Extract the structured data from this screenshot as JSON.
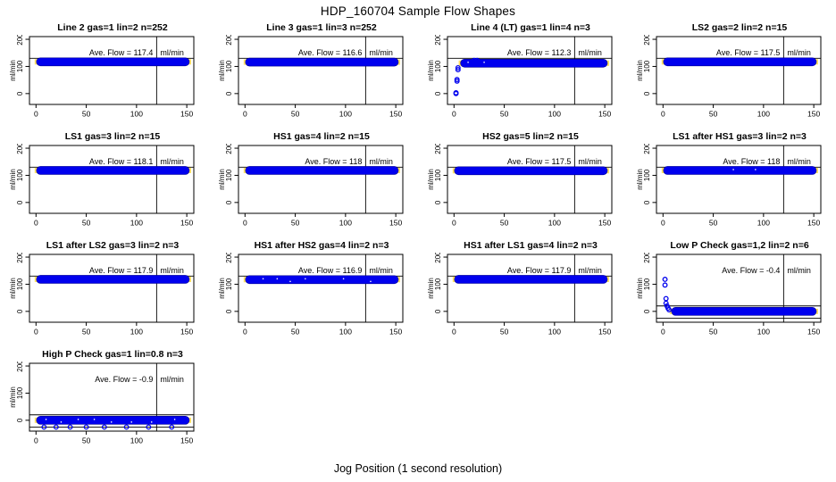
{
  "main": {
    "title": "HDP_160704  Sample Flow Shapes",
    "xlabel": "Jog Position (1 second resolution)"
  },
  "chart_data": {
    "type": "scatter",
    "xlabel": "Jog Position (1 second resolution)",
    "ylabel": "ml/min",
    "xlim": [
      -6.5,
      157
    ],
    "ylim": [
      -40,
      210
    ],
    "x_ticks": [
      0,
      50,
      100,
      150
    ],
    "y_ticks": [
      0,
      100,
      200
    ],
    "vline_x": 120,
    "grid": false,
    "ave_label_prefix": "Ave. Flow =  ",
    "unit": "ml/min",
    "colors": {
      "points": "#0000ee",
      "band_stroke": "#000099",
      "band_cap": "#ffe066",
      "axis": "#000000",
      "background": "#ffffff"
    },
    "panels": [
      {
        "title": "Line 2 gas=1 lin=2 n=252",
        "ave_flow": "117.4",
        "band": {
          "x0": 0,
          "x1": 153,
          "y": 117
        },
        "points": [],
        "hlines": [
          130
        ],
        "speckles": []
      },
      {
        "title": "Line 3 gas=1 lin=3 n=252",
        "ave_flow": "116.6",
        "band": {
          "x0": 0,
          "x1": 153,
          "y": 116
        },
        "points": [],
        "hlines": [
          130
        ],
        "speckles": []
      },
      {
        "title": "Line 4 (LT) gas=1 lin=4 n=3",
        "ave_flow": "112.3",
        "band": {
          "x0": 6,
          "x1": 153,
          "y": 112
        },
        "points": [
          [
            2,
            0
          ],
          [
            2,
            3
          ],
          [
            3,
            46
          ],
          [
            3,
            52
          ],
          [
            4,
            88
          ],
          [
            4,
            95
          ],
          [
            20,
            122
          ],
          [
            23,
            122
          ]
        ],
        "hlines": [
          130
        ],
        "speckles": [
          14,
          30
        ]
      },
      {
        "title": "LS2 gas=2 lin=2 n=15",
        "ave_flow": "117.5",
        "band": {
          "x0": 0,
          "x1": 153,
          "y": 117
        },
        "points": [],
        "hlines": [
          130
        ],
        "speckles": []
      },
      {
        "title": "LS1 gas=3 lin=2 n=15",
        "ave_flow": "118.1",
        "band": {
          "x0": 0,
          "x1": 153,
          "y": 118
        },
        "points": [],
        "hlines": [
          130
        ],
        "speckles": []
      },
      {
        "title": "HS1 gas=4 lin=2 n=15",
        "ave_flow": "118",
        "band": {
          "x0": 0,
          "x1": 153,
          "y": 118
        },
        "points": [],
        "hlines": [
          130
        ],
        "speckles": []
      },
      {
        "title": "HS2 gas=5 lin=2 n=15",
        "ave_flow": "117.5",
        "band": {
          "x0": 0,
          "x1": 153,
          "y": 117
        },
        "points": [],
        "hlines": [
          130
        ],
        "speckles": []
      },
      {
        "title": "LS1 after HS1 gas=3 lin=2 n=3",
        "ave_flow": "118",
        "band": {
          "x0": 0,
          "x1": 153,
          "y": 118
        },
        "points": [],
        "hlines": [
          130
        ],
        "speckles": [
          70,
          92
        ]
      },
      {
        "title": "LS1 after LS2 gas=3 lin=2 n=3",
        "ave_flow": "117.9",
        "band": {
          "x0": 0,
          "x1": 153,
          "y": 118
        },
        "points": [],
        "hlines": [
          130
        ],
        "speckles": []
      },
      {
        "title": "HS1 after HS2 gas=4 lin=2 n=3",
        "ave_flow": "116.9",
        "band": {
          "x0": 0,
          "x1": 153,
          "y": 117
        },
        "points": [],
        "hlines": [
          130
        ],
        "speckles": [
          18,
          32,
          45,
          60,
          98,
          125
        ]
      },
      {
        "title": "HS1 after LS1 gas=4 lin=2 n=3",
        "ave_flow": "117.9",
        "band": {
          "x0": 0,
          "x1": 153,
          "y": 118
        },
        "points": [],
        "hlines": [
          130
        ],
        "speckles": []
      },
      {
        "title": "Low P Check gas=1,2 lin=2 n=6",
        "ave_flow": "-0.4",
        "band": {
          "x0": 8,
          "x1": 153,
          "y": 0
        },
        "points": [
          [
            2,
            118
          ],
          [
            2,
            97
          ],
          [
            3,
            47
          ],
          [
            3,
            30
          ],
          [
            4,
            20
          ],
          [
            5,
            12
          ],
          [
            6,
            6
          ]
        ],
        "hlines": [
          20,
          -25
        ],
        "speckles": []
      },
      {
        "title": "High P Check gas=1 lin=0.8 n=3",
        "ave_flow": "-0.9",
        "band": {
          "x0": 0,
          "x1": 153,
          "y": 0
        },
        "points": [
          [
            8,
            -25
          ],
          [
            20,
            -25
          ],
          [
            34,
            -25
          ],
          [
            50,
            -25
          ],
          [
            68,
            -25
          ],
          [
            90,
            -25
          ],
          [
            112,
            -25
          ],
          [
            135,
            -25
          ]
        ],
        "hlines": [
          20,
          -25
        ],
        "speckles": [
          10,
          25,
          42,
          58,
          75,
          95,
          115,
          138
        ]
      }
    ]
  }
}
